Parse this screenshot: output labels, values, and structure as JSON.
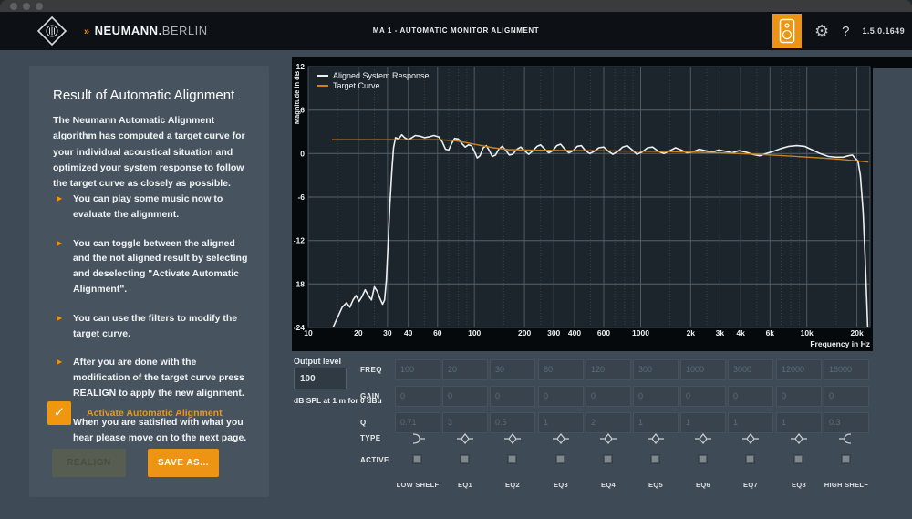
{
  "colors": {
    "accent": "#f0960f",
    "header_bg": "#0d1115",
    "main_bg": "#3e4b56",
    "panel_bg": "#475460",
    "chart_bg": "#06090b",
    "plot_bg": "#1c242c",
    "aligned_curve": "#eceeef",
    "target_curve": "#c8831f"
  },
  "header": {
    "brand_chevrons": "»",
    "brand_bold": "NEUMANN.",
    "brand_light": "BERLIN",
    "app_title": "MA 1 - AUTOMATIC MONITOR ALIGNMENT",
    "help_label": "?",
    "version": "1.5.0.1649"
  },
  "panel": {
    "title": "Result of Automatic Alignment",
    "intro": "The Neumann Automatic Alignment algorithm has computed a target curve for your individual acoustical situation and optimized your system response to follow the target curve as closely as possible.",
    "bullets": [
      "You can play some music now to evaluate the alignment.",
      "You can toggle between the aligned and the not aligned result by selecting and deselecting \"Activate Automatic Alignment\".",
      "You can use the filters to modify the target curve.",
      "After you are done with the modification of the target curve press REALIGN to apply the new alignment.",
      "When you are satisfied with what you hear please move on to the next page."
    ],
    "checkbox_label": "Activate Automatic Alignment",
    "checkbox_checked": true,
    "checkmark": "✓",
    "realign_label": "REALIGN",
    "save_label": "SAVE AS..."
  },
  "output_level": {
    "label": "Output level",
    "value": "100",
    "unit": "dB SPL at 1 m for 0 dBu"
  },
  "eq": {
    "row_labels": [
      "FREQ",
      "GAIN",
      "Q",
      "TYPE",
      "ACTIVE"
    ],
    "bands": [
      {
        "label": "LOW SHELF",
        "freq": "100",
        "gain": "0",
        "q": "0.71",
        "type": "low-shelf",
        "active": false
      },
      {
        "label": "EQ1",
        "freq": "20",
        "gain": "0",
        "q": "3",
        "type": "bell",
        "active": false
      },
      {
        "label": "EQ2",
        "freq": "30",
        "gain": "0",
        "q": "0.5",
        "type": "bell",
        "active": false
      },
      {
        "label": "EQ3",
        "freq": "80",
        "gain": "0",
        "q": "1",
        "type": "bell",
        "active": false
      },
      {
        "label": "EQ4",
        "freq": "120",
        "gain": "0",
        "q": "2",
        "type": "bell",
        "active": false
      },
      {
        "label": "EQ5",
        "freq": "300",
        "gain": "0",
        "q": "1",
        "type": "bell",
        "active": false
      },
      {
        "label": "EQ6",
        "freq": "1000",
        "gain": "0",
        "q": "1",
        "type": "bell",
        "active": false
      },
      {
        "label": "EQ7",
        "freq": "3000",
        "gain": "0",
        "q": "1",
        "type": "bell",
        "active": false
      },
      {
        "label": "EQ8",
        "freq": "12000",
        "gain": "0",
        "q": "1",
        "type": "bell",
        "active": false
      },
      {
        "label": "HIGH SHELF",
        "freq": "16000",
        "gain": "0",
        "q": "0.3",
        "type": "high-shelf",
        "active": false
      }
    ]
  },
  "chart_data": {
    "type": "line",
    "xlabel": "Frequency in Hz",
    "ylabel": "Magnitude in dB",
    "x_scale": "log",
    "xlim": [
      10,
      24000
    ],
    "ylim": [
      -24,
      12
    ],
    "grid": true,
    "legend_position": "top-left",
    "y_ticks": [
      12,
      6,
      0,
      -6,
      -12,
      -18,
      -24
    ],
    "x_major_ticks": [
      {
        "v": 10,
        "label": "10"
      },
      {
        "v": 20,
        "label": "20"
      },
      {
        "v": 30,
        "label": "30"
      },
      {
        "v": 40,
        "label": "40"
      },
      {
        "v": 60,
        "label": "60"
      },
      {
        "v": 100,
        "label": "100"
      },
      {
        "v": 200,
        "label": "200"
      },
      {
        "v": 300,
        "label": "300"
      },
      {
        "v": 400,
        "label": "400"
      },
      {
        "v": 600,
        "label": "600"
      },
      {
        "v": 1000,
        "label": "1000"
      },
      {
        "v": 2000,
        "label": "2k"
      },
      {
        "v": 3000,
        "label": "3k"
      },
      {
        "v": 4000,
        "label": "4k"
      },
      {
        "v": 6000,
        "label": "6k"
      },
      {
        "v": 10000,
        "label": "10k"
      },
      {
        "v": 20000,
        "label": "20k"
      }
    ],
    "x_minor_ticks": [
      15,
      25,
      50,
      70,
      80,
      90,
      150,
      250,
      500,
      700,
      800,
      900,
      1500,
      2500,
      5000,
      7000,
      8000,
      9000,
      15000
    ],
    "series": [
      {
        "name": "Aligned System Response",
        "color": "#eceeef",
        "width": 1.6,
        "points": [
          [
            13.5,
            -25
          ],
          [
            14.2,
            -23.8
          ],
          [
            15,
            -22.6
          ],
          [
            16,
            -21.2
          ],
          [
            17,
            -20.6
          ],
          [
            17.8,
            -21.2
          ],
          [
            18.6,
            -20.2
          ],
          [
            19.4,
            -19.6
          ],
          [
            20.2,
            -20.4
          ],
          [
            21,
            -19.8
          ],
          [
            22,
            -18.8
          ],
          [
            23,
            -19.6
          ],
          [
            24,
            -20.2
          ],
          [
            25,
            -18.4
          ],
          [
            26,
            -19.0
          ],
          [
            27,
            -20.0
          ],
          [
            28,
            -20.8
          ],
          [
            28.8,
            -20.2
          ],
          [
            29.5,
            -17.5
          ],
          [
            30.3,
            -12
          ],
          [
            31,
            -7
          ],
          [
            31.8,
            -2.5
          ],
          [
            32.6,
            0.8
          ],
          [
            33.5,
            2.2
          ],
          [
            35,
            2.0
          ],
          [
            36.5,
            2.6
          ],
          [
            38,
            2.2
          ],
          [
            40,
            1.9
          ],
          [
            42,
            2.2
          ],
          [
            44,
            2.5
          ],
          [
            47,
            2.4
          ],
          [
            50,
            2.2
          ],
          [
            53,
            2.3
          ],
          [
            57,
            2.5
          ],
          [
            61,
            2.3
          ],
          [
            64,
            1.6
          ],
          [
            67,
            0.6
          ],
          [
            70,
            0.5
          ],
          [
            73,
            1.4
          ],
          [
            76,
            2.1
          ],
          [
            80,
            2.0
          ],
          [
            84,
            1.4
          ],
          [
            88,
            0.9
          ],
          [
            92,
            1.2
          ],
          [
            96,
            1.1
          ],
          [
            100,
            0.3
          ],
          [
            104,
            -0.6
          ],
          [
            108,
            -0.3
          ],
          [
            113,
            0.8
          ],
          [
            118,
            1.1
          ],
          [
            123,
            0.4
          ],
          [
            128,
            -0.4
          ],
          [
            134,
            -0.2
          ],
          [
            140,
            0.6
          ],
          [
            147,
            1.0
          ],
          [
            154,
            0.5
          ],
          [
            162,
            -0.2
          ],
          [
            170,
            -0.1
          ],
          [
            180,
            0.6
          ],
          [
            190,
            0.9
          ],
          [
            200,
            0.4
          ],
          [
            212,
            -0.1
          ],
          [
            225,
            0.4
          ],
          [
            238,
            1.0
          ],
          [
            250,
            1.2
          ],
          [
            265,
            0.6
          ],
          [
            280,
            0.1
          ],
          [
            296,
            0.4
          ],
          [
            313,
            1.1
          ],
          [
            330,
            1.3
          ],
          [
            350,
            0.6
          ],
          [
            370,
            0.1
          ],
          [
            392,
            0.4
          ],
          [
            415,
            1.0
          ],
          [
            440,
            1.1
          ],
          [
            465,
            0.4
          ],
          [
            495,
            0.0
          ],
          [
            525,
            0.3
          ],
          [
            560,
            0.8
          ],
          [
            600,
            0.9
          ],
          [
            640,
            0.3
          ],
          [
            680,
            -0.1
          ],
          [
            730,
            0.3
          ],
          [
            780,
            0.9
          ],
          [
            830,
            1.1
          ],
          [
            890,
            0.5
          ],
          [
            950,
            -0.1
          ],
          [
            1020,
            0.2
          ],
          [
            1100,
            0.8
          ],
          [
            1180,
            0.9
          ],
          [
            1280,
            0.3
          ],
          [
            1380,
            0.0
          ],
          [
            1500,
            0.4
          ],
          [
            1620,
            0.8
          ],
          [
            1750,
            0.5
          ],
          [
            1900,
            0.1
          ],
          [
            2050,
            0.2
          ],
          [
            2250,
            0.6
          ],
          [
            2450,
            0.4
          ],
          [
            2700,
            0.2
          ],
          [
            2950,
            0.5
          ],
          [
            3250,
            0.3
          ],
          [
            3550,
            0.1
          ],
          [
            3900,
            0.4
          ],
          [
            4300,
            0.2
          ],
          [
            4700,
            -0.1
          ],
          [
            5200,
            -0.3
          ],
          [
            5700,
            0.0
          ],
          [
            6300,
            0.3
          ],
          [
            7000,
            0.7
          ],
          [
            7800,
            1.0
          ],
          [
            8700,
            1.1
          ],
          [
            9700,
            1.0
          ],
          [
            10800,
            0.5
          ],
          [
            12000,
            0.0
          ],
          [
            13500,
            -0.4
          ],
          [
            15000,
            -0.5
          ],
          [
            16500,
            -0.5
          ],
          [
            17800,
            -0.3
          ],
          [
            18800,
            -0.2
          ],
          [
            19600,
            -0.7
          ],
          [
            20300,
            -1.0
          ],
          [
            21000,
            -3
          ],
          [
            21800,
            -8
          ],
          [
            22400,
            -14
          ],
          [
            22900,
            -20
          ],
          [
            23300,
            -25
          ]
        ]
      },
      {
        "name": "Target Curve",
        "color": "#c8831f",
        "width": 1.4,
        "points": [
          [
            14,
            1.9
          ],
          [
            40,
            1.9
          ],
          [
            60,
            1.9
          ],
          [
            75,
            1.8
          ],
          [
            90,
            1.5
          ],
          [
            110,
            1.1
          ],
          [
            130,
            0.8
          ],
          [
            160,
            0.55
          ],
          [
            200,
            0.5
          ],
          [
            300,
            0.45
          ],
          [
            500,
            0.4
          ],
          [
            800,
            0.35
          ],
          [
            1200,
            0.3
          ],
          [
            2000,
            0.2
          ],
          [
            3000,
            0.1
          ],
          [
            5000,
            -0.1
          ],
          [
            8000,
            -0.35
          ],
          [
            12000,
            -0.6
          ],
          [
            16000,
            -0.8
          ],
          [
            20000,
            -1.0
          ],
          [
            23300,
            -1.15
          ]
        ]
      }
    ]
  }
}
